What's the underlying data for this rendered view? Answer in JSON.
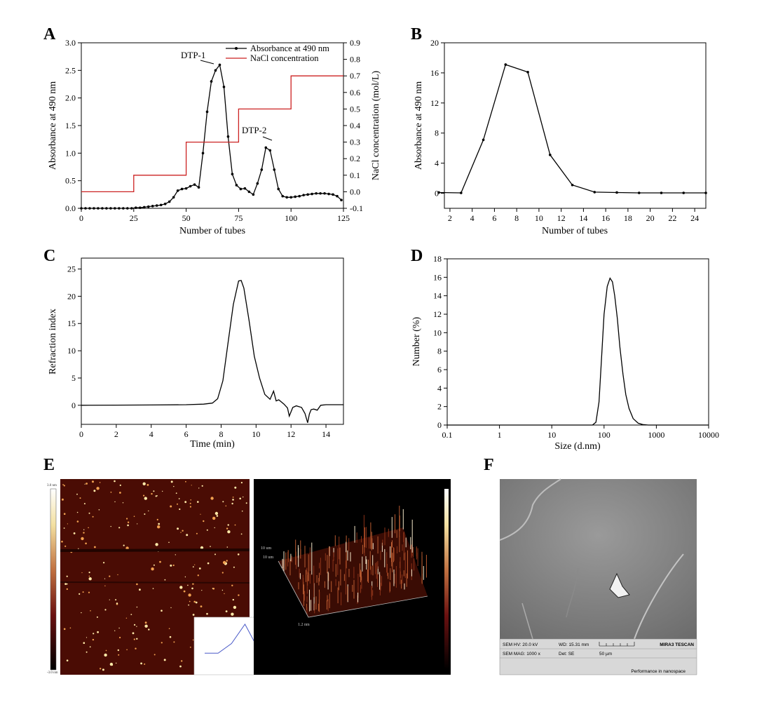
{
  "panels": {
    "A": {
      "label": "A",
      "chart_data": {
        "type": "line",
        "xlabel": "Number of tubes",
        "ylabel": "Absorbance at 490 nm",
        "y2label": "NaCl concentration (mol/L)",
        "xlim": [
          0,
          125
        ],
        "ylim": [
          0,
          3.0
        ],
        "y2lim": [
          -0.1,
          0.9
        ],
        "xticks": [
          0,
          25,
          50,
          75,
          100,
          125
        ],
        "yticks": [
          0.0,
          0.5,
          1.0,
          1.5,
          2.0,
          2.5,
          3.0
        ],
        "ytick_labels": [
          "0.0",
          "0.5",
          "1.0",
          "1.5",
          "2.0",
          "2.5",
          "3.0"
        ],
        "y2ticks": [
          -0.1,
          0.0,
          0.1,
          0.2,
          0.3,
          0.4,
          0.5,
          0.6,
          0.7,
          0.8,
          0.9
        ],
        "y2tick_labels": [
          "-0.1",
          "0.0",
          "0.1",
          "0.2",
          "0.3",
          "0.4",
          "0.5",
          "0.6",
          "0.7",
          "0.8",
          "0.9"
        ],
        "legend": [
          "Absorbance at 490 nm",
          "NaCl concentration"
        ],
        "legend_position": "top-right",
        "annotations": [
          "DTP-1",
          "DTP-2"
        ],
        "series": [
          {
            "name": "Absorbance at 490 nm",
            "color": "#000000",
            "x": [
              0,
              2,
              4,
              6,
              8,
              10,
              12,
              14,
              16,
              18,
              20,
              22,
              24,
              26,
              28,
              30,
              32,
              34,
              36,
              38,
              40,
              42,
              44,
              46,
              48,
              50,
              52,
              54,
              56,
              58,
              60,
              62,
              64,
              66,
              68,
              70,
              72,
              74,
              76,
              78,
              80,
              82,
              84,
              86,
              88,
              90,
              92,
              94,
              96,
              98,
              100,
              102,
              104,
              106,
              108,
              110,
              112,
              114,
              116,
              118,
              120,
              122,
              124
            ],
            "y": [
              0,
              0,
              0,
              0,
              0,
              0,
              0,
              0,
              0,
              0,
              0,
              0,
              0,
              0.01,
              0.01,
              0.02,
              0.03,
              0.04,
              0.05,
              0.06,
              0.08,
              0.12,
              0.2,
              0.32,
              0.35,
              0.36,
              0.4,
              0.43,
              0.38,
              1.0,
              1.75,
              2.3,
              2.5,
              2.6,
              2.2,
              1.3,
              0.62,
              0.42,
              0.35,
              0.36,
              0.3,
              0.25,
              0.45,
              0.7,
              1.1,
              1.05,
              0.7,
              0.35,
              0.22,
              0.2,
              0.2,
              0.21,
              0.22,
              0.24,
              0.25,
              0.26,
              0.27,
              0.27,
              0.27,
              0.26,
              0.25,
              0.22,
              0.15
            ]
          },
          {
            "name": "NaCl concentration",
            "color": "#cc2222",
            "axis": "right",
            "x": [
              0,
              25,
              25,
              50,
              50,
              75,
              75,
              100,
              100,
              125
            ],
            "y": [
              0,
              0,
              0.1,
              0.1,
              0.3,
              0.3,
              0.5,
              0.5,
              0.7,
              0.7
            ]
          }
        ]
      }
    },
    "B": {
      "label": "B",
      "chart_data": {
        "type": "line",
        "xlabel": "Number of tubes",
        "ylabel": "Absorbance at 490 nm",
        "xlim": [
          1.5,
          25
        ],
        "ylim": [
          -2,
          20
        ],
        "xticks": [
          2,
          4,
          6,
          8,
          10,
          12,
          14,
          16,
          18,
          20,
          22,
          24
        ],
        "yticks": [
          0,
          4,
          8,
          12,
          16,
          20
        ],
        "series": [
          {
            "name": "Absorbance",
            "color": "#000000",
            "x": [
              1,
              3,
              5,
              7,
              9,
              11,
              13,
              15,
              17,
              19,
              21,
              23,
              25
            ],
            "y": [
              0.1,
              0.05,
              7.1,
              17.1,
              16.1,
              5.1,
              1.1,
              0.15,
              0.1,
              0.05,
              0.05,
              0.05,
              0.05
            ]
          }
        ]
      }
    },
    "C": {
      "label": "C",
      "chart_data": {
        "type": "line",
        "xlabel": "Time (min)",
        "ylabel": "Refraction index",
        "xlim": [
          0,
          15
        ],
        "ylim": [
          -3.5,
          27
        ],
        "xticks": [
          0,
          2,
          4,
          6,
          8,
          10,
          12,
          14
        ],
        "yticks": [
          0,
          5,
          10,
          15,
          20,
          25
        ],
        "series": [
          {
            "name": "Refraction index",
            "color": "#000000",
            "x": [
              0,
              2,
              4,
              6,
              7,
              7.5,
              7.8,
              8.1,
              8.4,
              8.7,
              9.0,
              9.15,
              9.3,
              9.6,
              9.9,
              10.2,
              10.5,
              10.8,
              11.0,
              11.15,
              11.3,
              11.6,
              11.8,
              11.9,
              12.0,
              12.1,
              12.3,
              12.6,
              12.8,
              12.95,
              13.05,
              13.15,
              13.3,
              13.5,
              13.7,
              14.0,
              14.5,
              15.0
            ],
            "y": [
              0,
              0.02,
              0.05,
              0.1,
              0.2,
              0.4,
              1.2,
              4.5,
              11.5,
              18.5,
              22.8,
              22.9,
              21.5,
              15.5,
              9.0,
              5.0,
              2.0,
              1.1,
              2.6,
              0.8,
              1.0,
              0.2,
              -0.5,
              -2.0,
              -1.2,
              -0.4,
              -0.1,
              -0.4,
              -1.5,
              -3.2,
              -1.6,
              -0.8,
              -0.7,
              -0.9,
              0,
              0.1,
              0.1,
              0.1
            ]
          }
        ]
      }
    },
    "D": {
      "label": "D",
      "chart_data": {
        "type": "line",
        "xscale": "log",
        "xlabel": "Size (d.nm)",
        "ylabel": "Number (%)",
        "xlim": [
          0.1,
          10000
        ],
        "ylim": [
          0,
          18
        ],
        "xticks": [
          0.1,
          1,
          10,
          100,
          1000,
          10000
        ],
        "xtick_labels": [
          "0.1",
          "1",
          "10",
          "100",
          "1000",
          "10000"
        ],
        "yticks": [
          0,
          2,
          4,
          6,
          8,
          10,
          12,
          14,
          16,
          18
        ],
        "series": [
          {
            "name": "Number",
            "color": "#000000",
            "x": [
              0.1,
              60,
              70,
              80,
              90,
              100,
              115,
              130,
              145,
              160,
              180,
              200,
              230,
              260,
              300,
              360,
              450,
              550,
              700,
              10000
            ],
            "y": [
              0,
              0,
              0.3,
              2.5,
              7.5,
              12.0,
              15.0,
              15.9,
              15.5,
              14.0,
              11.5,
              8.5,
              5.5,
              3.3,
              1.8,
              0.7,
              0.2,
              0.05,
              0,
              0
            ]
          }
        ]
      }
    },
    "E": {
      "label": "E",
      "colorbar_top": "3.0 nm",
      "colorbar_bottom": "-3.0 nm",
      "axis_3d_labels": [
        "10 um",
        "10 um",
        "1.2 nm"
      ],
      "inset_chart": {
        "type": "line",
        "x": [
          0,
          1,
          2,
          3,
          4,
          5,
          6
        ],
        "y": [
          0.25,
          0.25,
          0.5,
          1.0,
          0.35,
          0.05,
          0.0
        ]
      }
    },
    "F": {
      "label": "F",
      "sem_info": {
        "hv": "SEM HV: 20.0 kV",
        "wd": "WD: 15.31 mm",
        "brand": "MIRA3 TESCAN",
        "mag": "SEM MAG: 1000 x",
        "det": "Det: SE",
        "scale": "50 µm",
        "tagline": "Performance in nanospace"
      }
    }
  }
}
